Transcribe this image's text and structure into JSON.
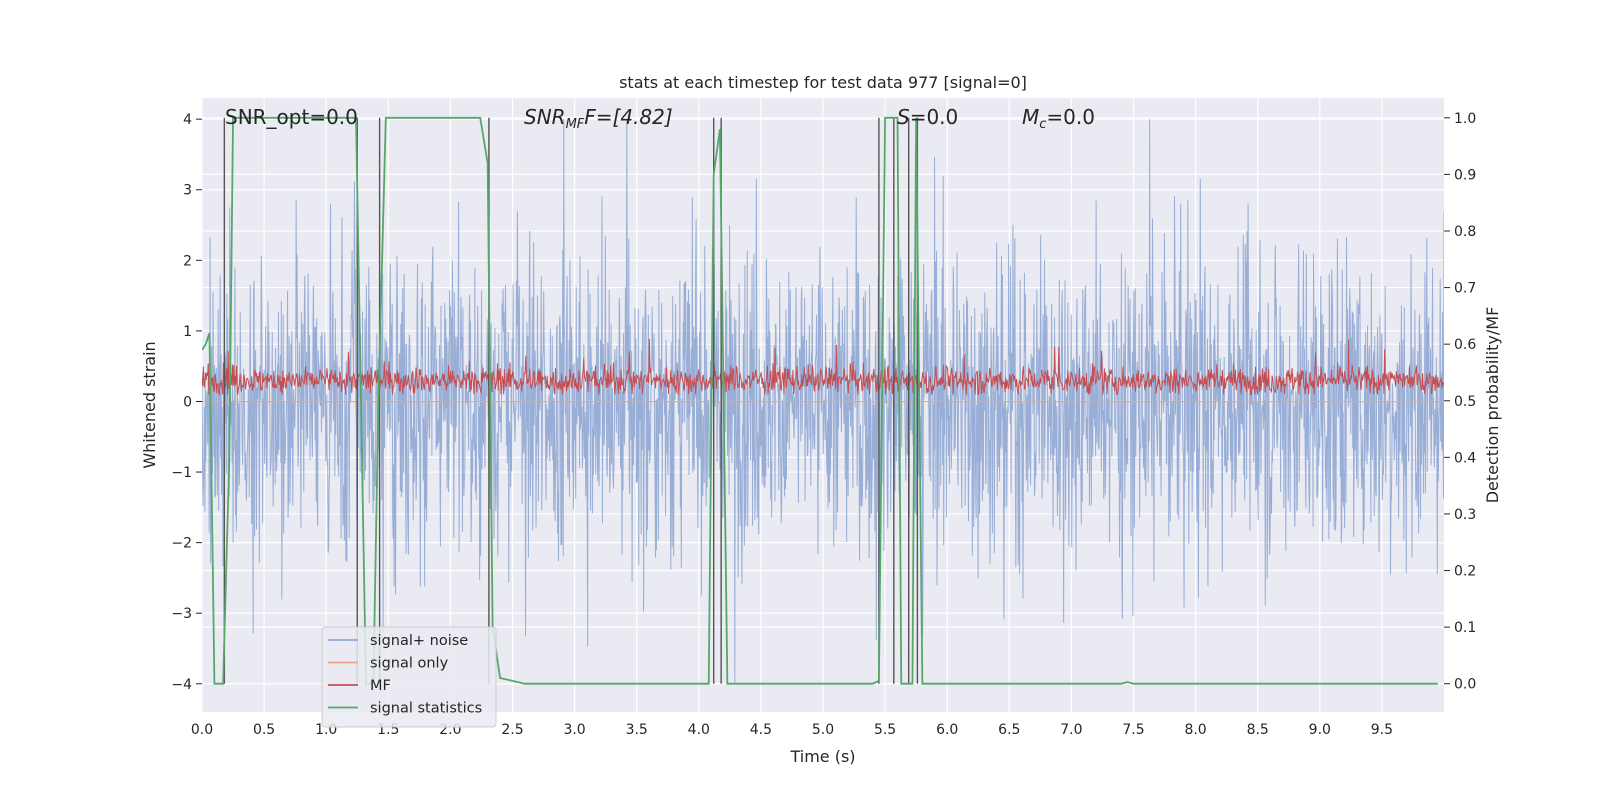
{
  "chart_data": {
    "type": "line",
    "title": "stats at each timestep for test data 977 [signal=0]",
    "xlabel": "Time (s)",
    "ylabel_left": "Whitened strain",
    "ylabel_right": "Detection probability/MF",
    "xlim": [
      0,
      10
    ],
    "ylim_left": [
      -4.4,
      4.3
    ],
    "ylim_right": [
      -0.05,
      1.035
    ],
    "grid": true,
    "legend_placement": "lower-left",
    "x_ticks": [
      "0.0",
      "0.5",
      "1.0",
      "1.5",
      "2.0",
      "2.5",
      "3.0",
      "3.5",
      "4.0",
      "4.5",
      "5.0",
      "5.5",
      "6.0",
      "6.5",
      "7.0",
      "7.5",
      "8.0",
      "8.5",
      "9.0",
      "9.5"
    ],
    "y_ticks_left": [
      "−4",
      "−3",
      "−2",
      "−1",
      "0",
      "1",
      "2",
      "3",
      "4"
    ],
    "y_ticks_right": [
      "0.0",
      "0.1",
      "0.2",
      "0.3",
      "0.4",
      "0.5",
      "0.6",
      "0.7",
      "0.8",
      "0.9",
      "1.0"
    ],
    "annotations": {
      "snr_opt": "SNR_opt=0.0",
      "snr_mf_main": "SNR",
      "snr_mf_sub": "MF",
      "snr_mf_tail": "F=[4.82]",
      "s_main": "S",
      "s_tail": "=0.0",
      "mc_main": "M",
      "mc_sub": "c",
      "mc_tail": "=0.0"
    },
    "legend": [
      {
        "label": "signal+ noise",
        "color": "#8da5cf"
      },
      {
        "label": "signal only",
        "color": "#e9a487"
      },
      {
        "label": "MF",
        "color": "#c44e52"
      },
      {
        "label": "signal statistics",
        "color": "#55a868"
      }
    ],
    "series": [
      {
        "name": "signal+ noise",
        "axis": "left",
        "color": "#94abd4",
        "description": "whitened noise samples, roughly within ±2.5 with peaks to ±4",
        "envelope": [
          -4.0,
          4.0
        ]
      },
      {
        "name": "signal only",
        "axis": "left",
        "color": "#e9a487",
        "values": "zero"
      },
      {
        "name": "MF",
        "axis": "left",
        "color": "#c44e52",
        "band": [
          0.1,
          0.6
        ]
      },
      {
        "name": "signal statistics",
        "axis": "right",
        "color": "#55a868",
        "x": [
          0.0,
          0.03,
          0.06,
          0.1,
          0.12,
          0.17,
          0.22,
          0.25,
          0.3,
          0.5,
          1.0,
          1.2,
          1.24,
          1.28,
          1.32,
          1.38,
          1.42,
          1.48,
          1.52,
          1.6,
          2.0,
          2.2,
          2.24,
          2.3,
          2.34,
          2.4,
          2.5,
          2.6,
          3.0,
          3.5,
          4.0,
          4.08,
          4.12,
          4.17,
          4.2,
          4.23,
          4.3,
          5.0,
          5.4,
          5.45,
          5.5,
          5.55,
          5.6,
          5.63,
          5.68,
          5.72,
          5.75,
          5.8,
          6.0,
          7.0,
          7.4,
          7.45,
          7.5,
          8.0,
          9.0,
          9.95
        ],
        "y": [
          0.59,
          0.6,
          0.62,
          0.0,
          0.0,
          0.0,
          0.4,
          1.0,
          1.0,
          1.0,
          1.0,
          1.0,
          1.0,
          0.5,
          0.0,
          0.0,
          0.5,
          1.0,
          1.0,
          1.0,
          1.0,
          1.0,
          1.0,
          0.92,
          0.1,
          0.01,
          0.005,
          0.0,
          0.0,
          0.0,
          0.0,
          0.0,
          0.9,
          0.98,
          0.5,
          0.0,
          0.0,
          0.0,
          0.0,
          0.005,
          1.0,
          1.0,
          1.0,
          0.0,
          0.0,
          0.0,
          1.0,
          0.0,
          0.0,
          0.0,
          0.0,
          0.003,
          0.0,
          0.0,
          0.0,
          0.0
        ]
      },
      {
        "name": "",
        "axis": "right",
        "type": "vlines",
        "color": "#555555",
        "x": [
          0.18,
          1.25,
          1.43,
          2.31,
          4.12,
          4.18,
          5.45,
          5.57,
          5.69,
          5.76
        ]
      }
    ]
  }
}
